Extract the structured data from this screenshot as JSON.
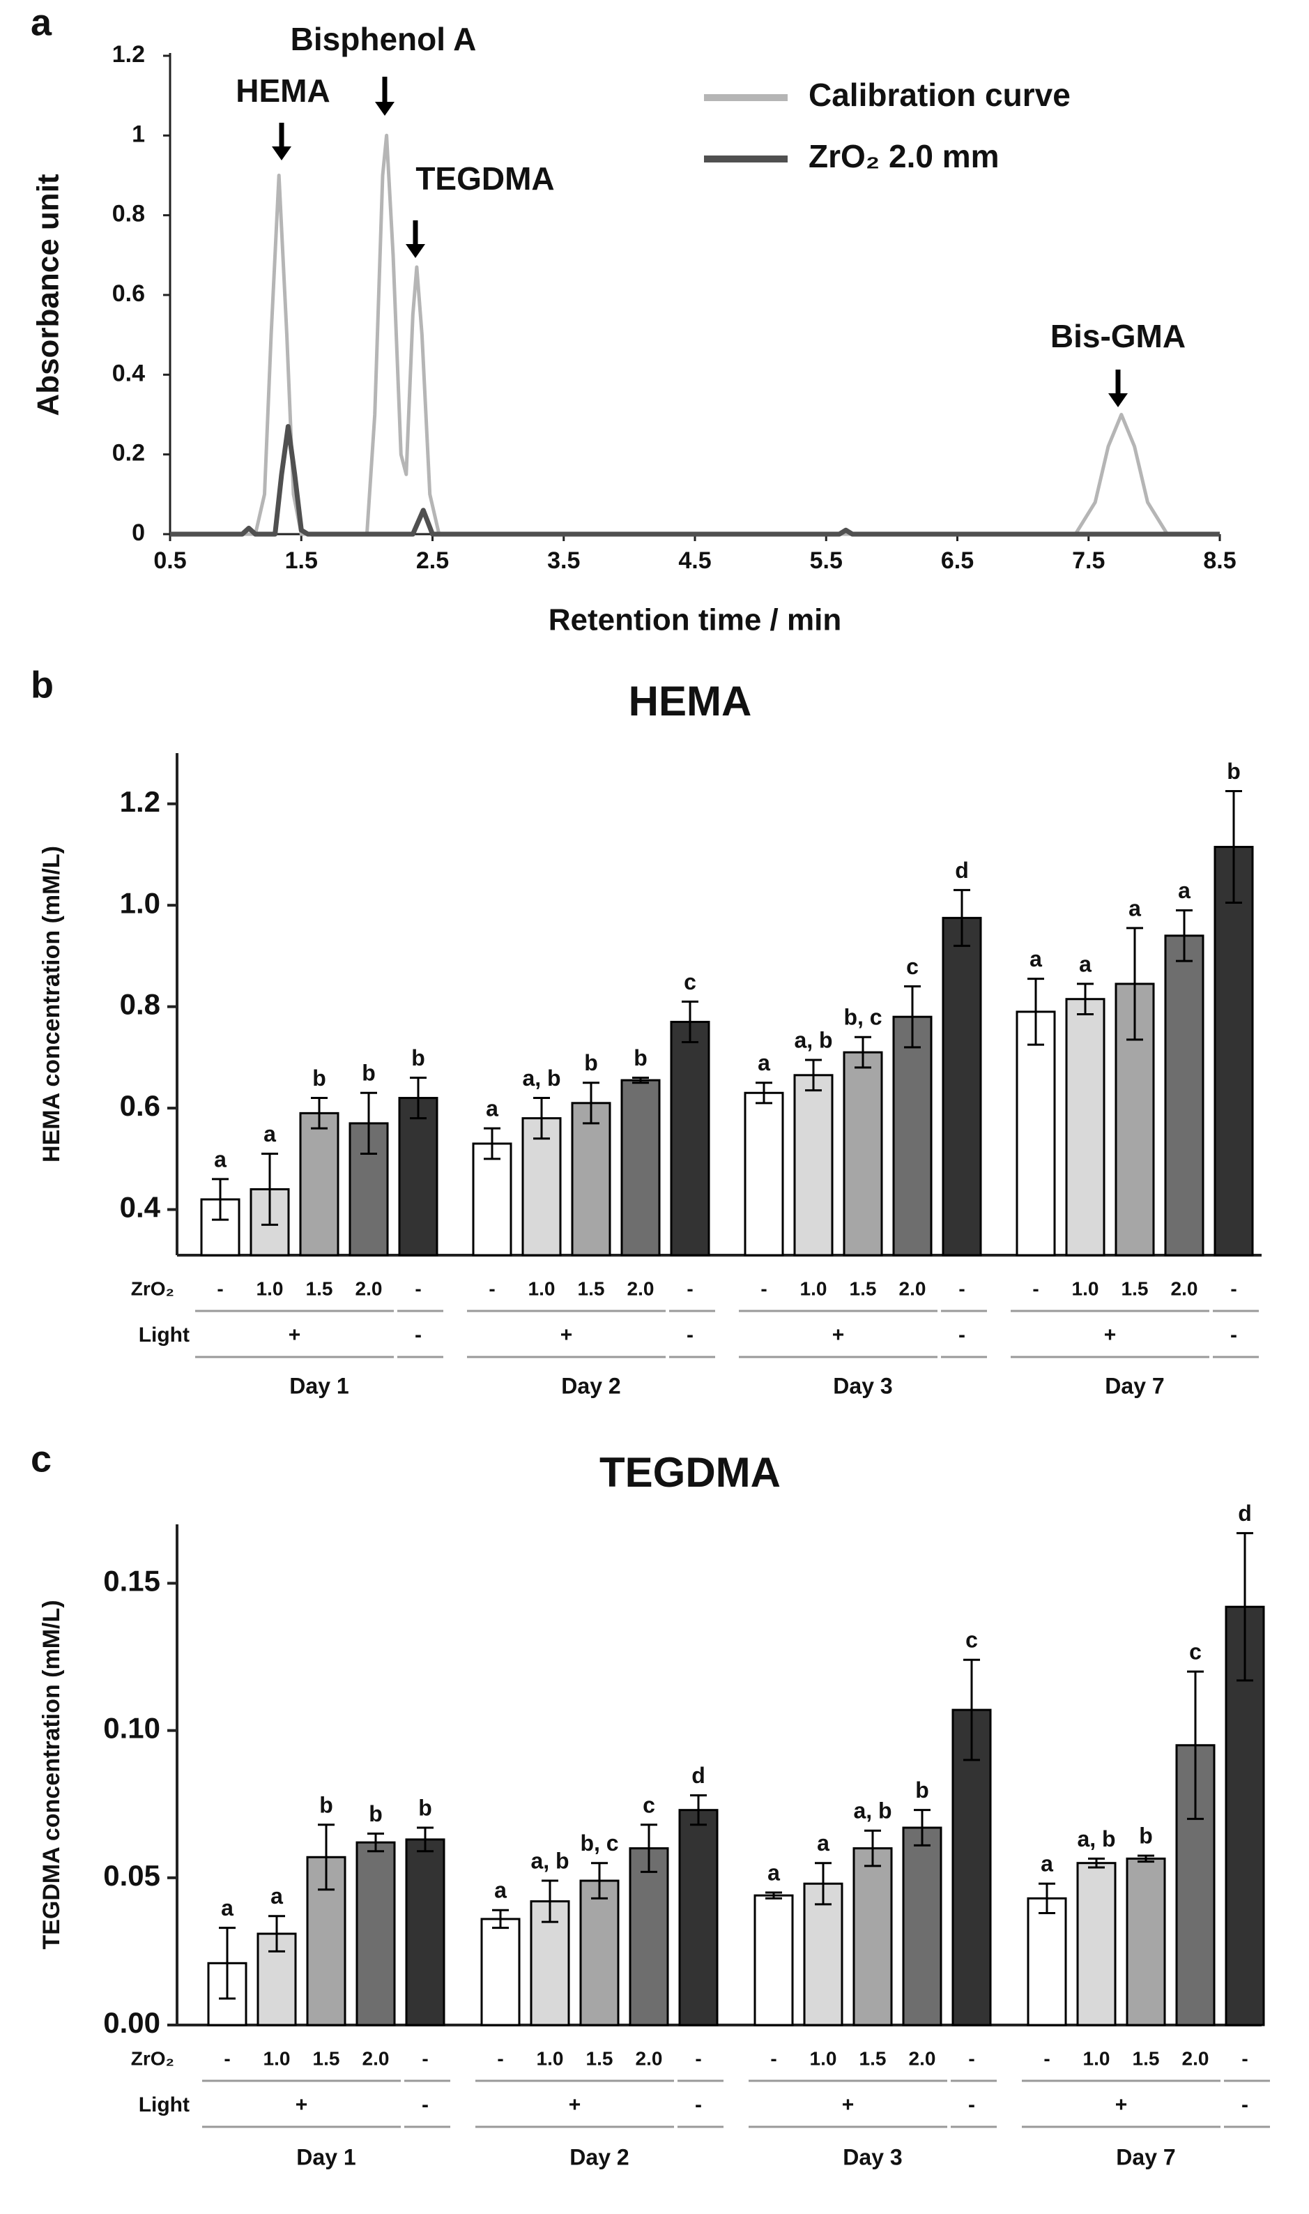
{
  "chart_data": [
    {
      "type": "line",
      "panel_label": "a",
      "xlabel": "Retention time / min",
      "ylabel": "Absorbance unit",
      "xlim": [
        0.5,
        8.5
      ],
      "xticks": [
        0.5,
        1.5,
        2.5,
        3.5,
        4.5,
        5.5,
        6.5,
        7.5,
        8.5
      ],
      "ylim": [
        0,
        1.2
      ],
      "yticks": [
        0,
        0.2,
        0.4,
        0.6,
        0.8,
        1,
        1.2
      ],
      "legend": "upper right",
      "annotations": [
        "HEMA",
        "Bisphenol A",
        "TEGDMA",
        "Bis-GMA"
      ],
      "series": [
        {
          "name": "Calibration curve",
          "color": "#b5b5b5",
          "x": [
            0.5,
            1.15,
            1.22,
            1.27,
            1.33,
            1.39,
            1.44,
            1.5,
            2.0,
            2.06,
            2.12,
            2.15,
            2.2,
            2.26,
            2.3,
            2.35,
            2.38,
            2.42,
            2.48,
            2.55,
            7.4,
            7.55,
            7.65,
            7.75,
            7.85,
            7.95,
            8.1,
            8.5
          ],
          "values": [
            0,
            0,
            0.1,
            0.5,
            0.9,
            0.5,
            0.1,
            0,
            0,
            0.3,
            0.9,
            1.0,
            0.7,
            0.2,
            0.15,
            0.55,
            0.67,
            0.5,
            0.1,
            0,
            0,
            0.08,
            0.22,
            0.3,
            0.22,
            0.08,
            0,
            0
          ]
        },
        {
          "name": "ZrO₂ 2.0 mm",
          "color": "#505050",
          "x": [
            0.5,
            1.05,
            1.1,
            1.15,
            1.3,
            1.35,
            1.4,
            1.45,
            1.5,
            1.55,
            2.35,
            2.43,
            2.5,
            5.6,
            5.65,
            5.7,
            8.5
          ],
          "values": [
            0,
            0,
            0.015,
            0,
            0,
            0.15,
            0.27,
            0.15,
            0.01,
            0,
            0,
            0.06,
            0,
            0,
            0.01,
            0,
            0
          ]
        }
      ]
    },
    {
      "type": "bar",
      "panel_label": "b",
      "title": "HEMA",
      "ylabel": "HEMA concentration (mM/L)",
      "ylim": [
        0.31,
        1.3
      ],
      "yticks": [
        0.4,
        0.6,
        0.8,
        {
          "value": 1,
          "label": "1.0"
        },
        1.2
      ],
      "categories": [
        "Day 1",
        "Day 2",
        "Day 3",
        "Day 7"
      ],
      "row_labels": [
        "ZrO₂",
        "Light"
      ],
      "zro2": [
        "-",
        "1.0",
        "1.5",
        "2.0",
        "-"
      ],
      "light": [
        "+",
        "-"
      ],
      "series": [
        {
          "color": "#ffffff",
          "values": [
            0.42,
            0.53,
            0.63,
            0.79
          ],
          "errors": [
            0.04,
            0.03,
            0.02,
            0.065
          ],
          "labels": [
            "a",
            "a",
            "a",
            "a"
          ]
        },
        {
          "color": "#d9d9d9",
          "values": [
            0.44,
            0.58,
            0.665,
            0.815
          ],
          "errors": [
            0.07,
            0.04,
            0.03,
            0.03
          ],
          "labels": [
            "a",
            "a, b",
            "a, b",
            "a"
          ]
        },
        {
          "color": "#a6a6a6",
          "values": [
            0.59,
            0.61,
            0.71,
            0.845
          ],
          "errors": [
            0.03,
            0.04,
            0.03,
            0.11
          ],
          "labels": [
            "b",
            "b",
            "b, c",
            "a"
          ]
        },
        {
          "color": "#6e6e6e",
          "values": [
            0.57,
            0.655,
            0.78,
            0.94
          ],
          "errors": [
            0.06,
            0.005,
            0.06,
            0.05
          ],
          "labels": [
            "b",
            "b",
            "c",
            "a"
          ]
        },
        {
          "color": "#333333",
          "values": [
            0.62,
            0.77,
            0.975,
            1.115
          ],
          "errors": [
            0.04,
            0.04,
            0.055,
            0.11
          ],
          "labels": [
            "b",
            "c",
            "d",
            "b"
          ]
        }
      ]
    },
    {
      "type": "bar",
      "panel_label": "c",
      "title": "TEGDMA",
      "ylabel": "TEGDMA concentration (mM/L)",
      "ylim": [
        0,
        0.17
      ],
      "yticks": [
        {
          "value": 0,
          "label": "0.00"
        },
        0.05,
        {
          "value": 0.1,
          "label": "0.10"
        },
        0.15
      ],
      "categories": [
        "Day 1",
        "Day 2",
        "Day 3",
        "Day 7"
      ],
      "row_labels": [
        "ZrO₂",
        "Light"
      ],
      "zro2": [
        "-",
        "1.0",
        "1.5",
        "2.0",
        "-"
      ],
      "light": [
        "+",
        "-"
      ],
      "series": [
        {
          "color": "#ffffff",
          "values": [
            0.021,
            0.036,
            0.044,
            0.043
          ],
          "errors": [
            0.012,
            0.003,
            0.001,
            0.005
          ],
          "labels": [
            "a",
            "a",
            "a",
            "a"
          ]
        },
        {
          "color": "#d9d9d9",
          "values": [
            0.031,
            0.042,
            0.048,
            0.055
          ],
          "errors": [
            0.006,
            0.007,
            0.007,
            0.0015
          ],
          "labels": [
            "a",
            "a, b",
            "a",
            "a, b"
          ]
        },
        {
          "color": "#a6a6a6",
          "values": [
            0.057,
            0.049,
            0.06,
            0.0565
          ],
          "errors": [
            0.011,
            0.006,
            0.006,
            0.001
          ],
          "labels": [
            "b",
            "b, c",
            "a, b",
            "b"
          ]
        },
        {
          "color": "#6e6e6e",
          "values": [
            0.062,
            0.06,
            0.067,
            0.095
          ],
          "errors": [
            0.003,
            0.008,
            0.006,
            0.025
          ],
          "labels": [
            "b",
            "c",
            "b",
            "c"
          ]
        },
        {
          "color": "#333333",
          "values": [
            0.063,
            0.073,
            0.107,
            0.142
          ],
          "errors": [
            0.004,
            0.005,
            0.017,
            0.025
          ],
          "labels": [
            "b",
            "d",
            "c",
            "d"
          ]
        }
      ]
    }
  ]
}
